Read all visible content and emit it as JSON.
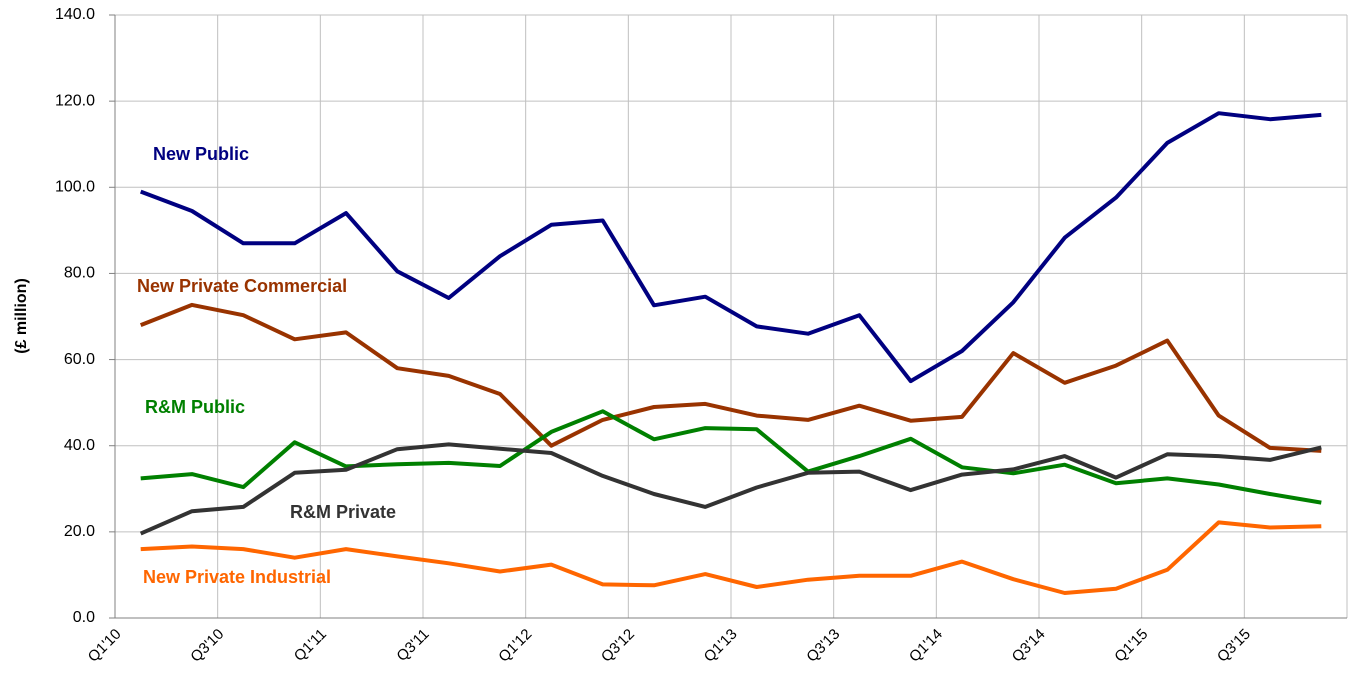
{
  "chart_data": {
    "type": "line",
    "y_label": "(£ million)",
    "categories": [
      "Q1'10",
      null,
      "Q3'10",
      null,
      "Q1'11",
      null,
      "Q3'11",
      null,
      "Q1'12",
      null,
      "Q3'12",
      null,
      "Q1'13",
      null,
      "Q3'13",
      null,
      "Q1'14",
      null,
      "Q3'14",
      null,
      "Q1'15",
      null,
      "Q3'15",
      null
    ],
    "series": [
      {
        "name": "New Public",
        "color": "#000080",
        "values": [
          99,
          94.5,
          87,
          87,
          94,
          80.5,
          74.3,
          84,
          91.3,
          92.3,
          72.6,
          74.6,
          67.7,
          66,
          70.3,
          55,
          62,
          73.3,
          88.3,
          97.6,
          110.3,
          117.2,
          115.8,
          116.8
        ]
      },
      {
        "name": "New Private Commercial",
        "color": "#993300",
        "values": [
          68,
          72.7,
          70.3,
          64.7,
          66.3,
          58,
          56.2,
          52,
          40,
          46,
          49,
          49.7,
          47,
          46,
          49.3,
          45.8,
          46.7,
          61.5,
          54.6,
          58.6,
          64.4,
          47,
          39.5,
          38.8
        ]
      },
      {
        "name": "R&M Public",
        "color": "#008000",
        "values": [
          32.4,
          33.4,
          30.4,
          40.8,
          35.2,
          35.7,
          36,
          35.3,
          43.2,
          48,
          41.5,
          44.1,
          43.8,
          34,
          37.6,
          41.6,
          35,
          33.6,
          35.6,
          31.3,
          32.4,
          31,
          28.8,
          26.8
        ]
      },
      {
        "name": "R&M Private",
        "color": "#333333",
        "values": [
          19.6,
          24.8,
          25.8,
          33.7,
          34.4,
          39.2,
          40.3,
          39.3,
          38.3,
          33,
          28.8,
          25.8,
          30.3,
          33.7,
          34,
          29.7,
          33.3,
          34.5,
          37.6,
          32.6,
          38,
          37.6,
          36.7,
          39.6
        ]
      },
      {
        "name": "New Private Industrial",
        "color": "#ff6600",
        "values": [
          16,
          16.6,
          16,
          14,
          16,
          14.3,
          12.7,
          10.8,
          12.4,
          7.8,
          7.6,
          10.2,
          7.2,
          8.9,
          9.8,
          9.8,
          13.1,
          9,
          5.8,
          6.8,
          11.2,
          22.2,
          21,
          21.3
        ]
      }
    ],
    "ylim": [
      0,
      140
    ],
    "yticks": [
      {
        "value": 0,
        "label": "0.0"
      },
      {
        "value": 20,
        "label": "20.0"
      },
      {
        "value": 40,
        "label": "40.0"
      },
      {
        "value": 60,
        "label": "60.0"
      },
      {
        "value": 80,
        "label": "80.0"
      },
      {
        "value": 100,
        "label": "100.0"
      },
      {
        "value": 120,
        "label": "120.0"
      },
      {
        "value": 140,
        "label": "140.0"
      }
    ],
    "grid": true
  }
}
